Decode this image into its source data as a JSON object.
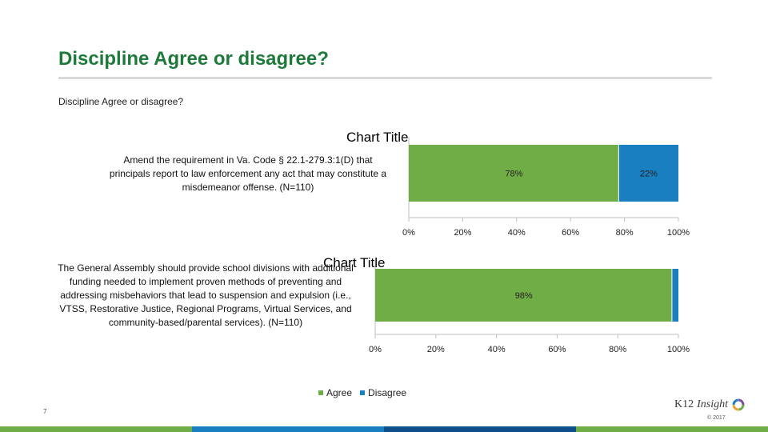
{
  "slide": {
    "title": "Discipline Agree or disagree?",
    "subtitle": "Discipline Agree or disagree?",
    "page_number": "7",
    "logo_text_a": "K12",
    "logo_text_b": "Insight",
    "copyright": "© 2017"
  },
  "legend": {
    "agree": "Agree",
    "disagree": "Disagree"
  },
  "colors": {
    "agree": "#70ad47",
    "disagree": "#1a7fc1",
    "title_green": "#1e7a3a",
    "band": [
      "#70ad47",
      "#1a7fc1",
      "#0d4f8b",
      "#70ad47"
    ]
  },
  "chart_data": [
    {
      "type": "bar",
      "orientation": "horizontal",
      "stacked": true,
      "title": "Chart Title",
      "categories": [
        "Amend the requirement in Va. Code § 22.1-279.3:1(D) that principals report to law enforcement any act that may constitute a misdemeanor offense. (N=110)"
      ],
      "category_lines": [
        "Amend the requirement in Va. Code § 22.1-279.3:1(D) that",
        "principals report to law enforcement any act that may constitute a",
        "misdemeanor offense. (N=110)"
      ],
      "series": [
        {
          "name": "Agree",
          "values": [
            78
          ],
          "labels": [
            "78%"
          ]
        },
        {
          "name": "Disagree",
          "values": [
            22
          ],
          "labels": [
            "22%"
          ]
        }
      ],
      "xlim": [
        0,
        100
      ],
      "xticks": [
        "0%",
        "20%",
        "40%",
        "60%",
        "80%",
        "100%"
      ]
    },
    {
      "type": "bar",
      "orientation": "horizontal",
      "stacked": true,
      "title": "Chart Title",
      "categories": [
        "The General Assembly should provide school divisions with additional funding needed to implement proven methods of preventing and addressing misbehaviors that lead to suspension and expulsion (i.e., VTSS, Restorative Justice, Regional Programs, Virtual Services, and community-based/parental services). (N=110)"
      ],
      "category_lines": [
        "The General Assembly should provide school divisions with additional",
        "funding needed to implement proven methods of preventing and",
        "addressing misbehaviors that lead to suspension and expulsion (i.e.,",
        "VTSS, Restorative Justice, Regional Programs, Virtual Services, and",
        "community-based/parental services). (N=110)"
      ],
      "series": [
        {
          "name": "Agree",
          "values": [
            98
          ],
          "labels": [
            "98%"
          ]
        },
        {
          "name": "Disagree",
          "values": [
            2
          ],
          "labels": [
            ""
          ]
        }
      ],
      "xlim": [
        0,
        100
      ],
      "xticks": [
        "0%",
        "20%",
        "40%",
        "60%",
        "80%",
        "100%"
      ]
    }
  ]
}
